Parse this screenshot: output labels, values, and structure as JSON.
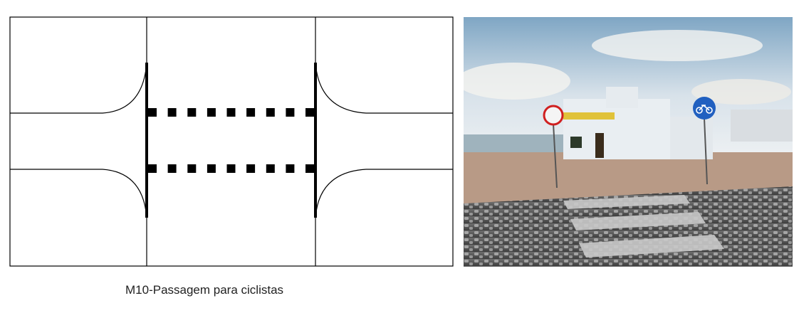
{
  "caption": "M10-Passagem para ciclistas",
  "colors": {
    "line": "#000000",
    "background": "#ffffff",
    "sky": "#c9d9e6",
    "pavement": "#8d8d8d",
    "building": "#e9eef2",
    "sign_red": "#d02020",
    "sign_blue": "#2160c0"
  },
  "diagram": {
    "marking_rows": 2,
    "squares_per_row": 9
  },
  "photo": {
    "signs": [
      "prohibition-sign",
      "cycle-path-sign"
    ]
  }
}
